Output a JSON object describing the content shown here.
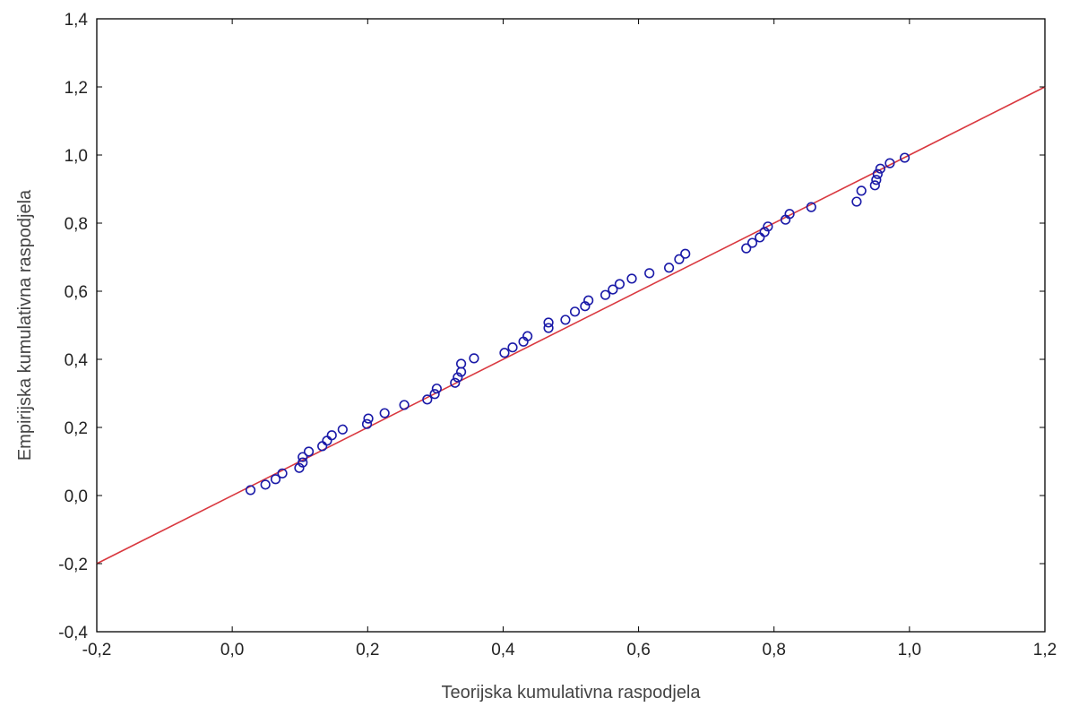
{
  "chart_data": {
    "type": "scatter",
    "title": "",
    "xlabel": "Teorijska kumulativna raspodjela",
    "ylabel": "Empirijska kumulativna raspodjela",
    "xlim": [
      -0.2,
      1.2
    ],
    "ylim": [
      -0.4,
      1.4
    ],
    "x_ticks": [
      -0.2,
      0.0,
      0.2,
      0.4,
      0.6,
      0.8,
      1.0,
      1.2
    ],
    "x_tick_labels": [
      "-0,2",
      "0,0",
      "0,2",
      "0,4",
      "0,6",
      "0,8",
      "1,0",
      "1,2"
    ],
    "y_ticks": [
      -0.4,
      -0.2,
      0.0,
      0.2,
      0.4,
      0.6,
      0.8,
      1.0,
      1.2,
      1.4
    ],
    "y_tick_labels": [
      "-0,4",
      "-0,2",
      "0,0",
      "0,2",
      "0,4",
      "0,6",
      "0,8",
      "1,0",
      "1,2",
      "1,4"
    ],
    "grid": false,
    "legend": "none",
    "marker_color": "#1a1aa8",
    "line_color": "#d9383f",
    "reference_line": {
      "x": [
        -0.2,
        1.2
      ],
      "y": [
        -0.2,
        1.2
      ]
    },
    "points": [
      [
        0.027,
        0.016
      ],
      [
        0.049,
        0.032
      ],
      [
        0.064,
        0.048
      ],
      [
        0.074,
        0.065
      ],
      [
        0.099,
        0.081
      ],
      [
        0.104,
        0.097
      ],
      [
        0.104,
        0.113
      ],
      [
        0.113,
        0.129
      ],
      [
        0.133,
        0.145
      ],
      [
        0.14,
        0.161
      ],
      [
        0.147,
        0.177
      ],
      [
        0.163,
        0.194
      ],
      [
        0.199,
        0.21
      ],
      [
        0.201,
        0.226
      ],
      [
        0.225,
        0.242
      ],
      [
        0.254,
        0.266
      ],
      [
        0.288,
        0.282
      ],
      [
        0.299,
        0.298
      ],
      [
        0.302,
        0.314
      ],
      [
        0.329,
        0.331
      ],
      [
        0.333,
        0.347
      ],
      [
        0.338,
        0.363
      ],
      [
        0.338,
        0.387
      ],
      [
        0.357,
        0.403
      ],
      [
        0.402,
        0.419
      ],
      [
        0.414,
        0.435
      ],
      [
        0.43,
        0.452
      ],
      [
        0.436,
        0.468
      ],
      [
        0.467,
        0.492
      ],
      [
        0.467,
        0.508
      ],
      [
        0.492,
        0.516
      ],
      [
        0.506,
        0.54
      ],
      [
        0.521,
        0.556
      ],
      [
        0.526,
        0.573
      ],
      [
        0.551,
        0.589
      ],
      [
        0.562,
        0.605
      ],
      [
        0.572,
        0.621
      ],
      [
        0.59,
        0.637
      ],
      [
        0.616,
        0.653
      ],
      [
        0.645,
        0.669
      ],
      [
        0.66,
        0.694
      ],
      [
        0.669,
        0.71
      ],
      [
        0.759,
        0.726
      ],
      [
        0.768,
        0.742
      ],
      [
        0.779,
        0.758
      ],
      [
        0.786,
        0.774
      ],
      [
        0.791,
        0.79
      ],
      [
        0.817,
        0.81
      ],
      [
        0.823,
        0.827
      ],
      [
        0.855,
        0.847
      ],
      [
        0.922,
        0.863
      ],
      [
        0.929,
        0.895
      ],
      [
        0.949,
        0.911
      ],
      [
        0.951,
        0.927
      ],
      [
        0.953,
        0.944
      ],
      [
        0.957,
        0.96
      ],
      [
        0.971,
        0.976
      ],
      [
        0.993,
        0.992
      ]
    ]
  }
}
